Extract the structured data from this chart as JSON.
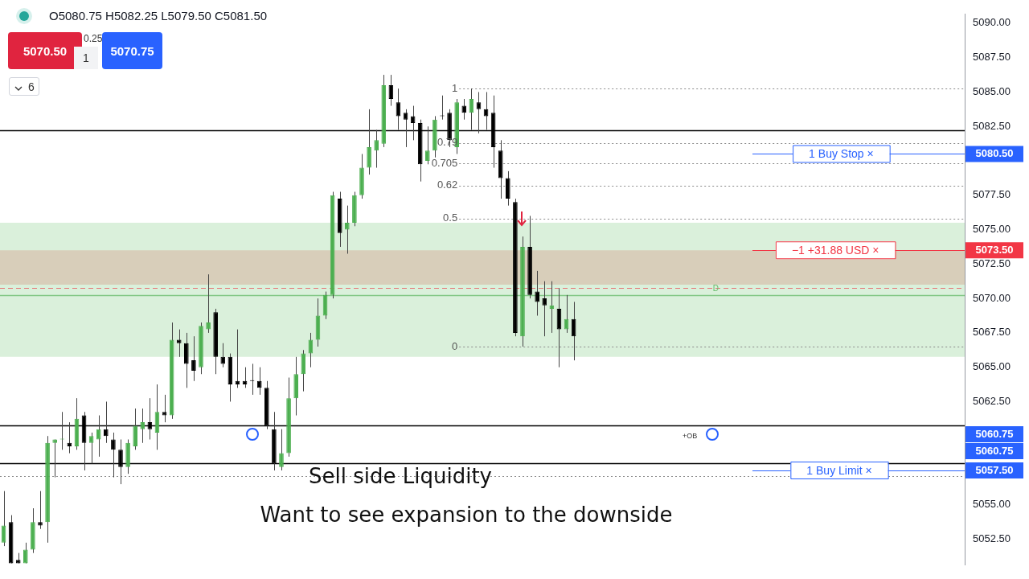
{
  "chart_data": {
    "type": "candlestick",
    "categories": [
      null,
      null,
      null,
      null,
      null,
      null,
      null,
      null,
      null,
      null,
      null,
      null,
      null,
      null,
      null,
      null,
      null,
      null,
      null,
      null,
      null,
      null,
      null,
      null,
      null,
      null,
      null,
      null,
      null,
      null,
      null,
      null,
      null,
      null,
      null,
      null,
      null,
      null,
      null,
      null,
      null,
      null,
      null,
      null,
      null,
      null,
      null,
      null,
      null,
      null,
      null,
      null,
      null,
      null,
      null,
      null,
      null,
      null,
      null,
      null,
      null,
      null,
      null,
      null,
      null,
      null,
      null,
      null,
      null,
      null,
      null,
      null,
      null,
      null,
      null,
      null,
      null,
      null,
      null,
      null,
      null,
      null,
      null,
      null,
      null,
      null,
      null,
      null,
      null,
      null,
      null,
      null,
      null,
      null,
      null,
      null,
      null,
      null,
      null,
      null,
      null,
      null,
      null,
      null,
      null,
      null,
      null,
      null,
      null,
      null,
      null,
      null,
      null,
      null,
      null,
      null,
      null,
      null,
      null,
      null,
      null,
      null,
      null,
      null,
      null,
      null,
      null,
      null,
      null,
      null,
      null,
      null
    ],
    "ohlc": [
      [
        5052.25,
        5056,
        5052,
        5053.5
      ],
      [
        5053.75,
        5054.25,
        5050.75,
        5050.75
      ],
      [
        5051,
        5051.5,
        5050.75,
        5050.75
      ],
      [
        5050.75,
        5052.25,
        5050.75,
        5051.75
      ],
      [
        5051.75,
        5054.75,
        5051.5,
        5053.75
      ],
      [
        5053.75,
        5056,
        5053.25,
        5053.5
      ],
      [
        5053.75,
        5060,
        5052.25,
        5059.5
      ],
      [
        5059.5,
        5059.75,
        5057,
        5059.75
      ],
      [
        5059.75,
        5061.75,
        5059,
        5059.75
      ],
      [
        5059.5,
        5061,
        5058.75,
        5059.25
      ],
      [
        5059.25,
        5062.75,
        5059,
        5061.25
      ],
      [
        5061.5,
        5061.75,
        5057.5,
        5059.5
      ],
      [
        5059.5,
        5060.25,
        5058,
        5060
      ],
      [
        5059.75,
        5061.5,
        5058.5,
        5060.5
      ],
      [
        5060.5,
        5062.5,
        5059.5,
        5060
      ],
      [
        5059.75,
        5060.25,
        5057,
        5059
      ],
      [
        5059,
        5059.75,
        5056.5,
        5057.75
      ],
      [
        5057.75,
        5059.75,
        5057.25,
        5059.5
      ],
      [
        5059.25,
        5062,
        5059,
        5060.75
      ],
      [
        5060.5,
        5062,
        5059.5,
        5061
      ],
      [
        5061,
        5062.75,
        5059.75,
        5060.5
      ],
      [
        5060.25,
        5063.75,
        5059,
        5061.75
      ],
      [
        5061.75,
        5063,
        5061,
        5061.5
      ],
      [
        5061.5,
        5068.25,
        5061.25,
        5067
      ],
      [
        5067,
        5067.75,
        5065.75,
        5066.75
      ],
      [
        5066.75,
        5067.5,
        5063.5,
        5065.25
      ],
      [
        5065.5,
        5067.25,
        5064,
        5064.75
      ],
      [
        5065,
        5068.25,
        5064.5,
        5068
      ],
      [
        5067.75,
        5071.75,
        5067.5,
        5068.25
      ],
      [
        5069,
        5069.25,
        5064.5,
        5065.75
      ],
      [
        5065.75,
        5066.75,
        5065,
        5065.25
      ],
      [
        5065.75,
        5066,
        5062.5,
        5063.75
      ],
      [
        5064,
        5067.75,
        5063.5,
        5063.75
      ],
      [
        5064,
        5065,
        5063.5,
        5063.75
      ],
      [
        5064,
        5065.25,
        5063,
        5064
      ],
      [
        5064,
        5065,
        5063,
        5063.5
      ],
      [
        5063.5,
        5064,
        5060.5,
        5060.75
      ],
      [
        5060.5,
        5061.75,
        5057.5,
        5058
      ],
      [
        5057.75,
        5060.5,
        5057.5,
        5058.75
      ],
      [
        5058.75,
        5064.25,
        5058.5,
        5062.75
      ],
      [
        5062.75,
        5065.75,
        5061.5,
        5064.5
      ],
      [
        5064.5,
        5066.25,
        5063.25,
        5066
      ],
      [
        5066,
        5067.5,
        5065,
        5067
      ],
      [
        5067,
        5070,
        5066.5,
        5068.75
      ],
      [
        5068.75,
        5070.5,
        5068.5,
        5070.25
      ],
      [
        5070.25,
        5077.75,
        5070,
        5077.5
      ],
      [
        5077.25,
        5077.75,
        5073.75,
        5074.75
      ],
      [
        5075,
        5076.75,
        5073.25,
        5075.5
      ],
      [
        5075.5,
        5077.75,
        5075.25,
        5077.5
      ],
      [
        5077.5,
        5080.5,
        5077.25,
        5079.5
      ],
      [
        5079.5,
        5083.75,
        5079,
        5081
      ],
      [
        5080.75,
        5082.25,
        5079.5,
        5081.5
      ],
      [
        5081.25,
        5086.25,
        5081,
        5085.5
      ],
      [
        5085.5,
        5086.25,
        5084,
        5084.5
      ],
      [
        5084.25,
        5085.25,
        5082.25,
        5083.25
      ],
      [
        5083.5,
        5083.75,
        5081,
        5083
      ],
      [
        5083.25,
        5084,
        5081.5,
        5082.75
      ],
      [
        5082.75,
        5083,
        5078.5,
        5079.75
      ],
      [
        5080,
        5082.5,
        5079.75,
        5080.75
      ],
      [
        5080.75,
        5083.25,
        5080.25,
        5083
      ],
      [
        5083.25,
        5084.75,
        5083,
        5083.25
      ],
      [
        5083.5,
        5083.75,
        5081,
        5081.5
      ],
      [
        5081,
        5084.5,
        5080.5,
        5084.25
      ],
      [
        5084,
        5084.5,
        5083,
        5083.5
      ],
      [
        5083.5,
        5085.25,
        5082.25,
        5084.5
      ],
      [
        5084.25,
        5085,
        5082,
        5083.75
      ],
      [
        5083.75,
        5085,
        5082.25,
        5083.25
      ],
      [
        5083.5,
        5084.75,
        5079.5,
        5081
      ],
      [
        5080.75,
        5081.5,
        5077.25,
        5078.75
      ],
      [
        5078.75,
        5079.25,
        5076.75,
        5077.25
      ],
      [
        5077,
        5077.25,
        5067.25,
        5067.5
      ],
      [
        5067.25,
        5074.5,
        5066.5,
        5073.75
      ],
      [
        5073.75,
        5076,
        5070,
        5070.25
      ],
      [
        5070.5,
        5072,
        5068.75,
        5069.75
      ],
      [
        5070,
        5071.25,
        5067.25,
        5069.5
      ],
      [
        5069.25,
        5071.25,
        5067.5,
        5069.5
      ],
      [
        5069.25,
        5070.75,
        5065,
        5067.75
      ],
      [
        5067.75,
        5070.25,
        5067.5,
        5068.5
      ],
      [
        5068.5,
        5069.75,
        5065.5,
        5067.25
      ],
      null,
      null,
      null,
      null,
      null,
      null,
      null,
      null,
      null,
      null,
      null,
      null,
      null,
      null,
      null,
      null,
      null,
      null,
      null,
      null,
      null,
      null,
      null,
      null,
      null,
      null,
      null,
      null,
      null,
      null,
      null,
      null,
      null,
      null,
      null,
      null,
      null,
      null,
      null,
      null,
      null,
      null,
      null,
      null,
      null,
      null,
      null,
      null,
      null,
      null,
      null,
      null,
      null
    ],
    "colors": [
      "#4caf50",
      "#000000",
      "#000000",
      "#4caf50",
      "#4caf50",
      "#000000",
      "#4caf50",
      "#4caf50",
      "#4caf50",
      "#000000",
      "#4caf50",
      "#000000",
      "#4caf50",
      "#4caf50",
      "#000000",
      "#000000",
      "#000000",
      "#4caf50",
      "#4caf50",
      "#4caf50",
      "#000000",
      "#4caf50",
      "#000000",
      "#4caf50",
      "#000000",
      "#000000",
      "#000000",
      "#4caf50",
      "#4caf50",
      "#000000",
      "#000000",
      "#000000",
      "#000000",
      "#000000",
      "#000000",
      "#000000",
      "#000000",
      "#000000",
      "#4caf50",
      "#4caf50",
      "#4caf50",
      "#4caf50",
      "#4caf50",
      "#4caf50",
      "#4caf50",
      "#4caf50",
      "#000000",
      "#4caf50",
      "#4caf50",
      "#4caf50",
      "#4caf50",
      "#4caf50",
      "#4caf50",
      "#000000",
      "#000000",
      "#000000",
      "#000000",
      "#000000",
      "#4caf50",
      "#4caf50",
      "#000000",
      "#000000",
      "#4caf50",
      "#000000",
      "#4caf50",
      "#000000",
      "#000000",
      "#000000",
      "#000000",
      "#000000",
      "#000000",
      "#4caf50",
      "#000000",
      "#000000",
      "#000000",
      "#4caf50",
      "#000000",
      "#4caf50",
      "#000000",
      null,
      null,
      null,
      null,
      null,
      null,
      null,
      null,
      null,
      null,
      null,
      null,
      null,
      null,
      null,
      null,
      null,
      null,
      null,
      null,
      null,
      null,
      null,
      null,
      null,
      null,
      null,
      null,
      null,
      null,
      null,
      null,
      null,
      null,
      null,
      null,
      null,
      null,
      null,
      null,
      null,
      null,
      null,
      null,
      null,
      null,
      null,
      null,
      null,
      null,
      null,
      null,
      null
    ],
    "ylim": [
      5050.65,
      5090.65
    ],
    "yticks": [
      {
        "value": 5052.5,
        "label": "5052.50"
      },
      {
        "value": 5055,
        "label": "5055.00"
      },
      {
        "value": 5062.5,
        "label": "5062.50"
      },
      {
        "value": 5065,
        "label": "5065.00"
      },
      {
        "value": 5067.5,
        "label": "5067.50"
      },
      {
        "value": 5070,
        "label": "5070.00"
      },
      {
        "value": 5072.5,
        "label": "5072.50"
      },
      {
        "value": 5075,
        "label": "5075.00"
      },
      {
        "value": 5077.5,
        "label": "5077.50"
      },
      {
        "value": 5082.5,
        "label": "5082.50"
      },
      {
        "value": 5085,
        "label": "5085.00"
      },
      {
        "value": 5087.5,
        "label": "5087.50"
      },
      {
        "value": 5090,
        "label": "5090.00"
      }
    ],
    "tick_labels": "y",
    "bands": [
      {
        "axis": "y",
        "from": 5065.75,
        "to": 5075.5,
        "color": "#d4edd5"
      },
      {
        "axis": "y",
        "from": 5071,
        "to": 5073.5,
        "color": "#d7c8b4"
      }
    ],
    "ref_lines": [
      {
        "axis": "y",
        "value": 5082.25,
        "color": "#000000"
      },
      {
        "axis": "y",
        "value": 5060.75,
        "color": "#000000"
      },
      {
        "axis": "y",
        "value": 5058,
        "color": "#000000"
      },
      {
        "axis": "y",
        "value": 5070.25,
        "color": "#81c784"
      },
      {
        "axis": "y",
        "value": 5070.75,
        "color": "#e57373",
        "line_style": "dashed"
      },
      {
        "axis": "y",
        "value": 5085.25,
        "color": "#8a8a8a",
        "line_style": "dotted"
      },
      {
        "axis": "y",
        "value": 5081.3,
        "color": "#8a8a8a",
        "line_style": "dotted"
      },
      {
        "axis": "y",
        "value": 5079.8,
        "color": "#8a8a8a",
        "line_style": "dotted"
      },
      {
        "axis": "y",
        "value": 5078.2,
        "color": "#8a8a8a",
        "line_style": "dotted"
      },
      {
        "axis": "y",
        "value": 5075.8,
        "color": "#8a8a8a",
        "line_style": "dotted"
      },
      {
        "axis": "y",
        "value": 5066.5,
        "color": "#8a8a8a",
        "line_style": "dotted"
      },
      {
        "axis": "y",
        "value": 5057.1,
        "color": "#8a8a8a",
        "line_style": "dotted"
      },
      {
        "axis": "y",
        "value": 5080.5,
        "label": "5080.50",
        "color": "#2962ff"
      },
      {
        "axis": "y",
        "value": 5073.5,
        "label": "5073.50",
        "color": "#f23645"
      },
      {
        "axis": "y",
        "value": 5057.5,
        "label": "5057.50",
        "color": "#2962ff"
      }
    ],
    "annotations": [
      "O5080.75 H5082.25 L5079.50 C5081.50",
      "5070.50",
      "0.25",
      "1",
      "5070.75",
      "6",
      "5060.75",
      "5060.75",
      "1",
      "0.79",
      "0.705",
      "0.62",
      "0.5",
      "0",
      {
        "text": "1 Buy Stop ×",
        "y": 5080.5
      },
      {
        "text": "−1 +31.88 USD ×",
        "y": 5073.5
      },
      {
        "text": "1 Buy Limit ×",
        "y": 5057.5
      },
      {
        "text": "D",
        "y": 5070.25
      },
      {
        "text": "+OB",
        "y": 5060.75
      },
      {
        "text": "Sell side Liquidity",
        "y": 5058
      },
      "Want to see expansion to the downside"
    ]
  }
}
